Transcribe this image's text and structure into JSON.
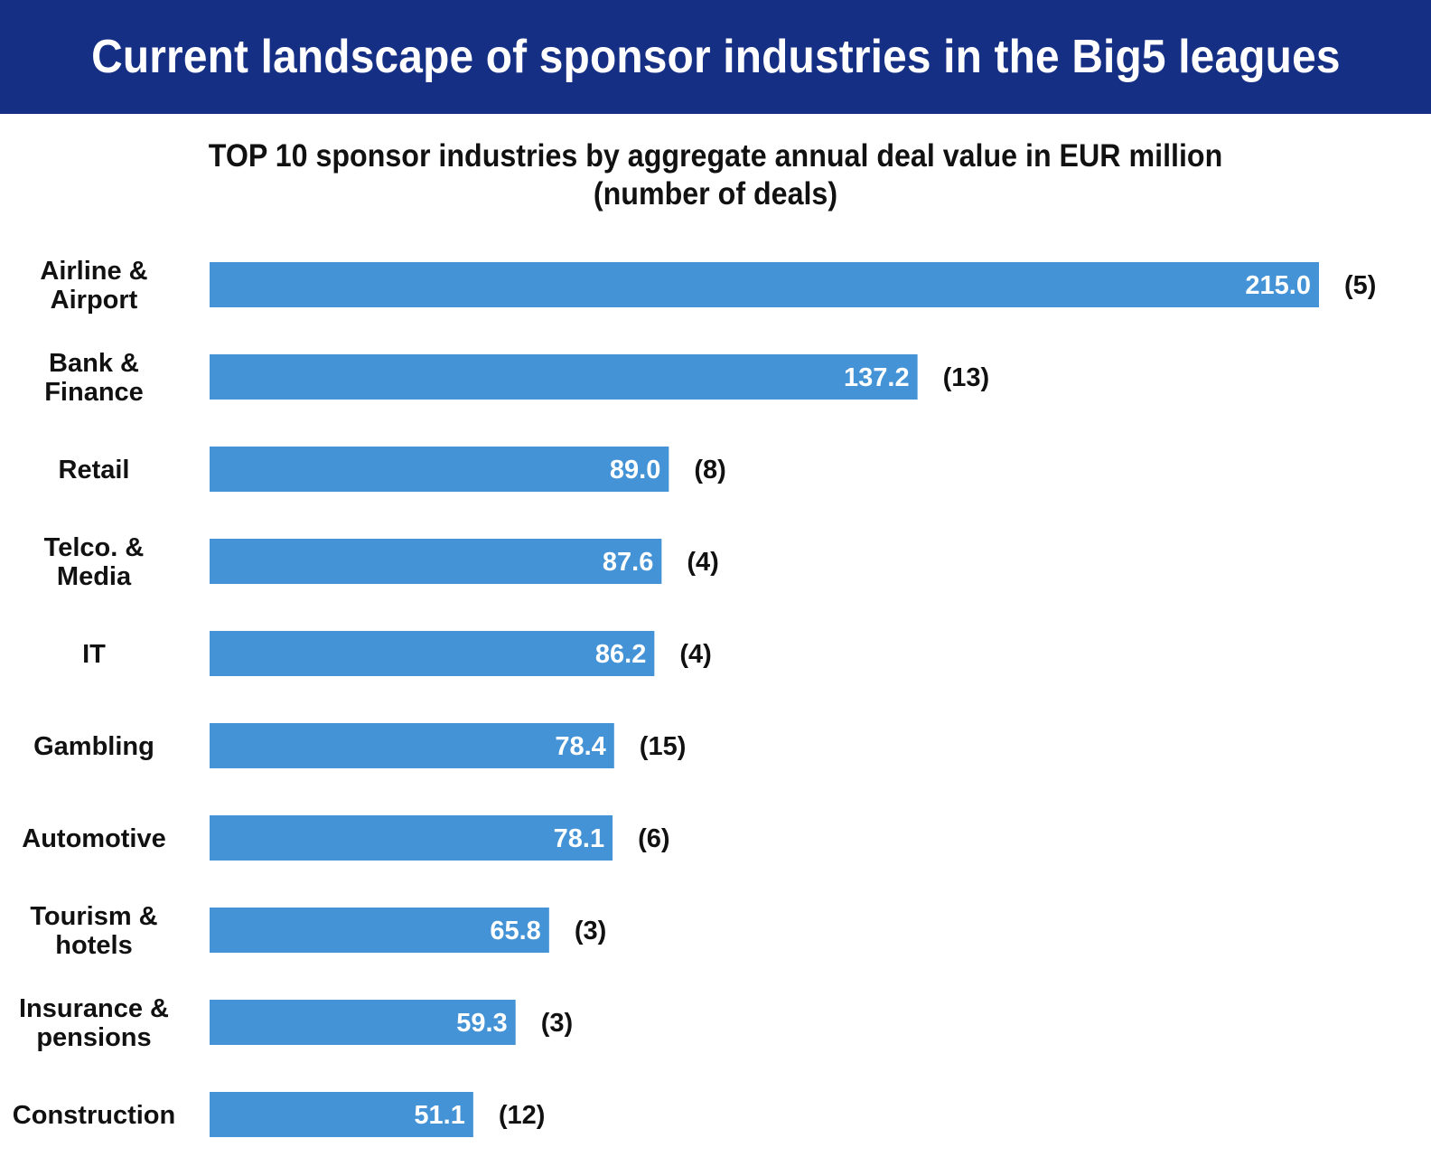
{
  "header": {
    "title": "Current landscape of sponsor industries in the Big5 leagues"
  },
  "chart_data": {
    "type": "bar",
    "orientation": "horizontal",
    "title": "TOP 10 sponsor industries by aggregate annual deal value in EUR million",
    "subtitle": "(number of deals)",
    "categories": [
      [
        "Airline &",
        "Airport"
      ],
      [
        "Bank &",
        "Finance"
      ],
      [
        "Retail"
      ],
      [
        "Telco. &",
        "Media"
      ],
      [
        "IT"
      ],
      [
        "Gambling"
      ],
      [
        "Automotive"
      ],
      [
        "Tourism &",
        "hotels"
      ],
      [
        "Insurance &",
        "pensions"
      ],
      [
        "Construction"
      ]
    ],
    "values": [
      215.0,
      137.2,
      89.0,
      87.6,
      86.2,
      78.4,
      78.1,
      65.8,
      59.3,
      51.1
    ],
    "value_labels": [
      "215.0",
      "137.2",
      "89.0",
      "87.6",
      "86.2",
      "78.4",
      "78.1",
      "65.8",
      "59.3",
      "51.1"
    ],
    "deal_counts": [
      "(5)",
      "(13)",
      "(8)",
      "(4)",
      "(4)",
      "(15)",
      "(6)",
      "(3)",
      "(3)",
      "(12)"
    ],
    "xlim": [
      0,
      215
    ],
    "grid": false,
    "colors": {
      "bar": "#4393d6",
      "banner": "#152f85"
    }
  }
}
